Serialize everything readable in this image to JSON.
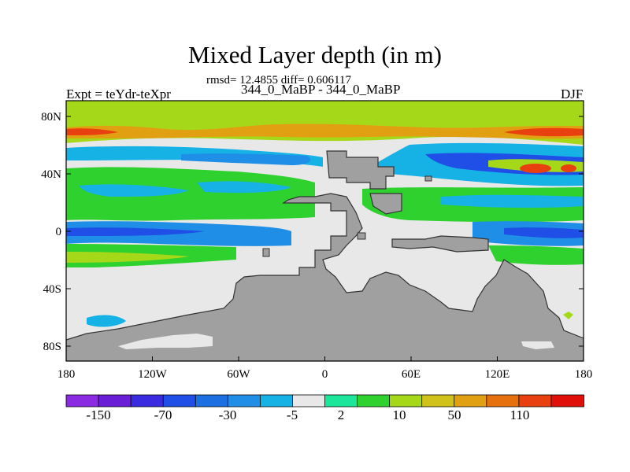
{
  "title": "Mixed Layer depth (in m)",
  "subtitle": "rmsd= 12.4855 diff= 0.606117",
  "left_label": "Expt = teYdr-teXpr",
  "center_label": "344_0_MaBP - 344_0_MaBP",
  "right_label": "DJF",
  "map": {
    "projection": "cylindrical-equidistant",
    "lon_range": [
      -180,
      180
    ],
    "lat_range": [
      -90,
      90
    ],
    "y_ticks": [
      "80N",
      "40N",
      "0",
      "40S",
      "80S"
    ],
    "x_ticks": [
      "180",
      "120W",
      "60W",
      "0",
      "60E",
      "120E",
      "180"
    ],
    "land_color": "#a0a0a0",
    "zero_color": "#e8e8e8"
  },
  "colorbar": {
    "colors": [
      "#8a2be2",
      "#6a1fd6",
      "#3a2be0",
      "#1f4fe6",
      "#1c6fe0",
      "#1e8ee6",
      "#16b2e6",
      "#e8e8e8",
      "#1ce69a",
      "#2ed12e",
      "#a6d81a",
      "#d0c21a",
      "#e0a012",
      "#e6700e",
      "#e8400e",
      "#e01008"
    ],
    "labels": [
      "-150",
      "-70",
      "-30",
      "-5",
      "2",
      "10",
      "50",
      "110"
    ]
  }
}
